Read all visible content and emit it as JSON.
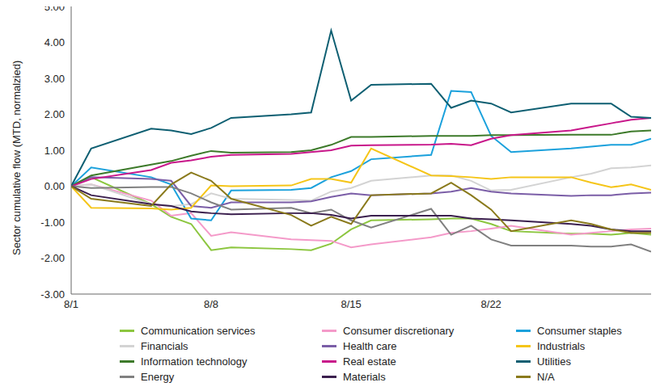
{
  "chart_data": {
    "type": "line",
    "y_label": "Sector cumulative flow (MTD, normalzied)",
    "x": [
      1,
      2,
      5,
      6,
      7,
      8,
      9,
      12,
      13,
      14,
      15,
      16,
      19,
      20,
      21,
      22,
      23,
      26,
      27,
      28,
      29,
      30
    ],
    "xlim": [
      1,
      30
    ],
    "xticks": [
      {
        "value": 1,
        "label": "8/1"
      },
      {
        "value": 8,
        "label": "8/8"
      },
      {
        "value": 15,
        "label": "8/15"
      },
      {
        "value": 22,
        "label": "8/22"
      }
    ],
    "ylim": [
      -3,
      5
    ],
    "yticks": [
      {
        "value": -3,
        "label": "-3.00"
      },
      {
        "value": -2,
        "label": "-2.00"
      },
      {
        "value": -1,
        "label": "-1.00"
      },
      {
        "value": 0,
        "label": "0.00"
      },
      {
        "value": 1,
        "label": "1.00"
      },
      {
        "value": 2,
        "label": "2.00"
      },
      {
        "value": 3,
        "label": "3.00"
      },
      {
        "value": 4,
        "label": "4.00"
      },
      {
        "value": 5,
        "label": "5.00"
      }
    ],
    "grid": false,
    "legend": "bottom",
    "series": [
      {
        "name": "Communication services",
        "color": "#8cc63f",
        "values": [
          0,
          0.25,
          -0.5,
          -0.85,
          -1.05,
          -1.78,
          -1.7,
          -1.75,
          -1.78,
          -1.6,
          -1.2,
          -0.95,
          -0.92,
          -0.9,
          -0.9,
          -1.05,
          -1.25,
          -1.32,
          -1.32,
          -1.35,
          -1.3,
          -1.35
        ]
      },
      {
        "name": "Consumer discretionary",
        "color": "#f49ac9",
        "values": [
          0,
          0.05,
          -0.4,
          -0.82,
          -0.75,
          -1.38,
          -1.28,
          -1.48,
          -1.5,
          -1.52,
          -1.7,
          -1.62,
          -1.42,
          -1.3,
          -1.25,
          -1.18,
          -1.1,
          -1.35,
          -1.3,
          -1.25,
          -1.2,
          -1.18
        ]
      },
      {
        "name": "Consumer staples",
        "color": "#1ba1dc",
        "values": [
          0,
          0.52,
          0.25,
          0.05,
          -0.9,
          -0.95,
          -0.12,
          -0.1,
          -0.05,
          0.25,
          0.42,
          0.75,
          0.87,
          2.65,
          2.62,
          1.4,
          0.95,
          1.05,
          1.1,
          1.15,
          1.15,
          1.32
        ]
      },
      {
        "name": "Financials",
        "color": "#d3d3d3",
        "values": [
          0,
          0.05,
          -0.5,
          -0.55,
          -0.5,
          -0.2,
          -0.35,
          -0.38,
          -0.4,
          -0.15,
          -0.05,
          0.15,
          0.3,
          0.3,
          0.15,
          -0.12,
          -0.1,
          0.25,
          0.35,
          0.5,
          0.52,
          0.58
        ]
      },
      {
        "name": "Health care",
        "color": "#7b5ea7",
        "values": [
          0,
          0.25,
          0.2,
          0.15,
          -0.55,
          -0.6,
          -0.45,
          -0.45,
          -0.42,
          -0.3,
          -0.2,
          -0.25,
          -0.2,
          -0.15,
          -0.05,
          -0.15,
          -0.2,
          -0.27,
          -0.25,
          -0.25,
          -0.2,
          -0.18
        ]
      },
      {
        "name": "Industrials",
        "color": "#f5c518",
        "values": [
          0,
          -0.6,
          -0.62,
          -0.65,
          -0.6,
          0.02,
          0,
          0.02,
          0.2,
          0.2,
          0.1,
          1.05,
          0.3,
          0.28,
          0.25,
          0.2,
          0.25,
          0.25,
          0.1,
          -0.03,
          0.05,
          -0.1
        ]
      },
      {
        "name": "Information technology",
        "color": "#3d7a2a",
        "values": [
          0,
          0.3,
          0.6,
          0.7,
          0.85,
          0.98,
          0.93,
          0.95,
          1,
          1.15,
          1.37,
          1.37,
          1.4,
          1.4,
          1.4,
          1.42,
          1.42,
          1.43,
          1.43,
          1.43,
          1.52,
          1.55
        ]
      },
      {
        "name": "Real estate",
        "color": "#c8178a",
        "values": [
          0,
          0.2,
          0.45,
          0.65,
          0.72,
          0.82,
          0.87,
          0.9,
          0.95,
          1,
          1.13,
          1.14,
          1.16,
          1.18,
          1.14,
          1.32,
          1.42,
          1.55,
          1.65,
          1.75,
          1.85,
          1.9
        ]
      },
      {
        "name": "Utilities",
        "color": "#0e5f72",
        "values": [
          0,
          1.05,
          1.6,
          1.55,
          1.45,
          1.62,
          1.9,
          2,
          2.05,
          4.33,
          2.38,
          2.82,
          2.85,
          2.18,
          2.38,
          2.3,
          2.05,
          2.3,
          2.3,
          2.3,
          1.93,
          1.9
        ]
      },
      {
        "name": "Energy",
        "color": "#808080",
        "values": [
          0,
          -0.05,
          -0.02,
          -0.02,
          -0.2,
          -0.45,
          -0.65,
          -0.6,
          -0.75,
          -0.65,
          -0.95,
          -1.15,
          -0.63,
          -1.35,
          -1.1,
          -1.48,
          -1.65,
          -1.65,
          -1.68,
          -1.68,
          -1.62,
          -1.82
        ]
      },
      {
        "name": "Materials",
        "color": "#3b1f4e",
        "values": [
          0,
          -0.25,
          -0.5,
          -0.55,
          -0.7,
          -0.75,
          -0.78,
          -0.75,
          -0.75,
          -0.8,
          -0.9,
          -0.82,
          -0.82,
          -0.82,
          -0.9,
          -0.92,
          -0.95,
          -1.05,
          -1.1,
          -1.2,
          -1.25,
          -1.25
        ]
      },
      {
        "name": "N/A",
        "color": "#8a7a1c",
        "values": [
          0,
          -0.35,
          -0.55,
          0.05,
          0.38,
          0.15,
          -0.35,
          -0.8,
          -1.1,
          -0.85,
          -1.05,
          -0.25,
          -0.2,
          0.1,
          -0.25,
          -0.65,
          -1.25,
          -0.95,
          -1.05,
          -1.2,
          -1.3,
          -1.3
        ]
      }
    ]
  }
}
